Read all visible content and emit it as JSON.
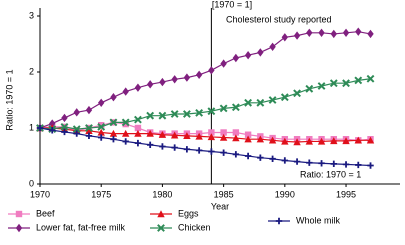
{
  "chart_data": {
    "type": "line",
    "title": "[1970 = 1]",
    "annotations": [
      "Cholesterol study reported",
      "Ratio: 1970 = 1"
    ],
    "xlabel": "Year",
    "ylabel": "Ratio: 1970 = 1",
    "reference_line_x": 1984,
    "x": [
      1970,
      1971,
      1972,
      1973,
      1974,
      1975,
      1976,
      1977,
      1978,
      1979,
      1980,
      1981,
      1982,
      1983,
      1984,
      1985,
      1986,
      1987,
      1988,
      1989,
      1990,
      1991,
      1992,
      1993,
      1994,
      1995,
      1996,
      1997
    ],
    "xlim": [
      1970,
      1999
    ],
    "xticks": [
      1970,
      1975,
      1980,
      1985,
      1990,
      1995
    ],
    "ylim": [
      0,
      3
    ],
    "yticks": [
      0,
      1,
      2,
      3
    ],
    "series": [
      {
        "name": "Beef",
        "color": "#f07cc0",
        "marker": "square",
        "values": [
          1.0,
          1.02,
          1.02,
          0.95,
          1.0,
          1.05,
          1.1,
          1.07,
          1.0,
          0.92,
          0.9,
          0.9,
          0.9,
          0.9,
          0.92,
          0.92,
          0.92,
          0.88,
          0.85,
          0.82,
          0.8,
          0.8,
          0.8,
          0.8,
          0.8,
          0.8,
          0.78,
          0.8
        ]
      },
      {
        "name": "Lower fat, fat-free milk",
        "color": "#80207f",
        "marker": "diamond",
        "values": [
          1.0,
          1.08,
          1.18,
          1.28,
          1.32,
          1.45,
          1.55,
          1.65,
          1.72,
          1.78,
          1.82,
          1.87,
          1.9,
          1.95,
          2.03,
          2.15,
          2.25,
          2.3,
          2.35,
          2.45,
          2.62,
          2.65,
          2.7,
          2.7,
          2.68,
          2.7,
          2.72,
          2.68
        ]
      },
      {
        "name": "Eggs",
        "color": "#e0101a",
        "marker": "triangle",
        "values": [
          1.0,
          1.0,
          0.98,
          0.95,
          0.95,
          0.92,
          0.9,
          0.9,
          0.9,
          0.9,
          0.88,
          0.87,
          0.86,
          0.85,
          0.84,
          0.83,
          0.82,
          0.8,
          0.8,
          0.78,
          0.76,
          0.75,
          0.76,
          0.76,
          0.77,
          0.77,
          0.78,
          0.78
        ]
      },
      {
        "name": "Chicken",
        "color": "#2e8b57",
        "marker": "x",
        "values": [
          1.0,
          0.98,
          1.02,
          0.98,
          1.0,
          1.02,
          1.1,
          1.1,
          1.15,
          1.22,
          1.22,
          1.25,
          1.25,
          1.27,
          1.3,
          1.35,
          1.37,
          1.45,
          1.45,
          1.5,
          1.55,
          1.62,
          1.7,
          1.75,
          1.8,
          1.8,
          1.85,
          1.88
        ]
      },
      {
        "name": "Whole milk",
        "color": "#1a1a80",
        "marker": "plus",
        "values": [
          1.0,
          0.96,
          0.93,
          0.9,
          0.86,
          0.83,
          0.8,
          0.76,
          0.73,
          0.7,
          0.67,
          0.65,
          0.62,
          0.6,
          0.58,
          0.56,
          0.53,
          0.5,
          0.47,
          0.45,
          0.42,
          0.4,
          0.38,
          0.37,
          0.36,
          0.35,
          0.34,
          0.33
        ]
      }
    ]
  }
}
